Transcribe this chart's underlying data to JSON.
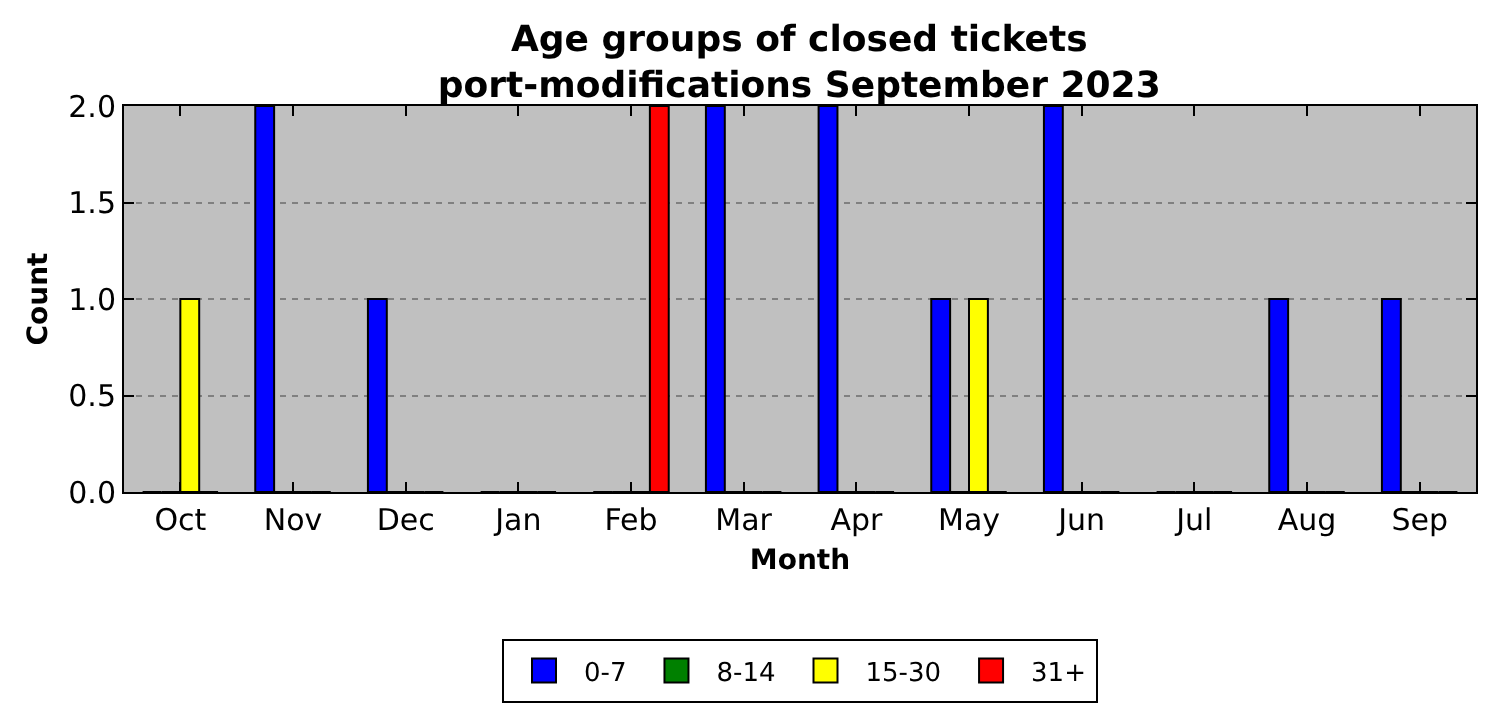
{
  "chart_data": {
    "type": "bar",
    "title": "Age groups of closed tickets\nport-modifications September 2023",
    "xlabel": "Month",
    "ylabel": "Count",
    "categories": [
      "Oct",
      "Nov",
      "Dec",
      "Jan",
      "Feb",
      "Mar",
      "Apr",
      "May",
      "Jun",
      "Jul",
      "Aug",
      "Sep"
    ],
    "series": [
      {
        "name": "0-7",
        "color": "#0000ff",
        "values": [
          0,
          2,
          1,
          0,
          0,
          2,
          2,
          1,
          2,
          0,
          1,
          1
        ]
      },
      {
        "name": "8-14",
        "color": "#008000",
        "values": [
          0,
          0,
          0,
          0,
          0,
          0,
          0,
          0,
          0,
          0,
          0,
          0
        ]
      },
      {
        "name": "15-30",
        "color": "#ffff00",
        "values": [
          1,
          0,
          0,
          0,
          0,
          0,
          0,
          1,
          0,
          0,
          0,
          0
        ]
      },
      {
        "name": "31+",
        "color": "#ff0000",
        "values": [
          0,
          0,
          0,
          0,
          2,
          0,
          0,
          0,
          0,
          0,
          0,
          0
        ]
      }
    ],
    "ylim": [
      0,
      2
    ],
    "yticks": [
      {
        "value": 0,
        "label": "0.0"
      },
      {
        "value": 0.5,
        "label": "0.5"
      },
      {
        "value": 1,
        "label": "1.0"
      },
      {
        "value": 1.5,
        "label": "1.5"
      },
      {
        "value": 2,
        "label": "2.0"
      }
    ],
    "grid": "y",
    "legend": "bottom"
  }
}
